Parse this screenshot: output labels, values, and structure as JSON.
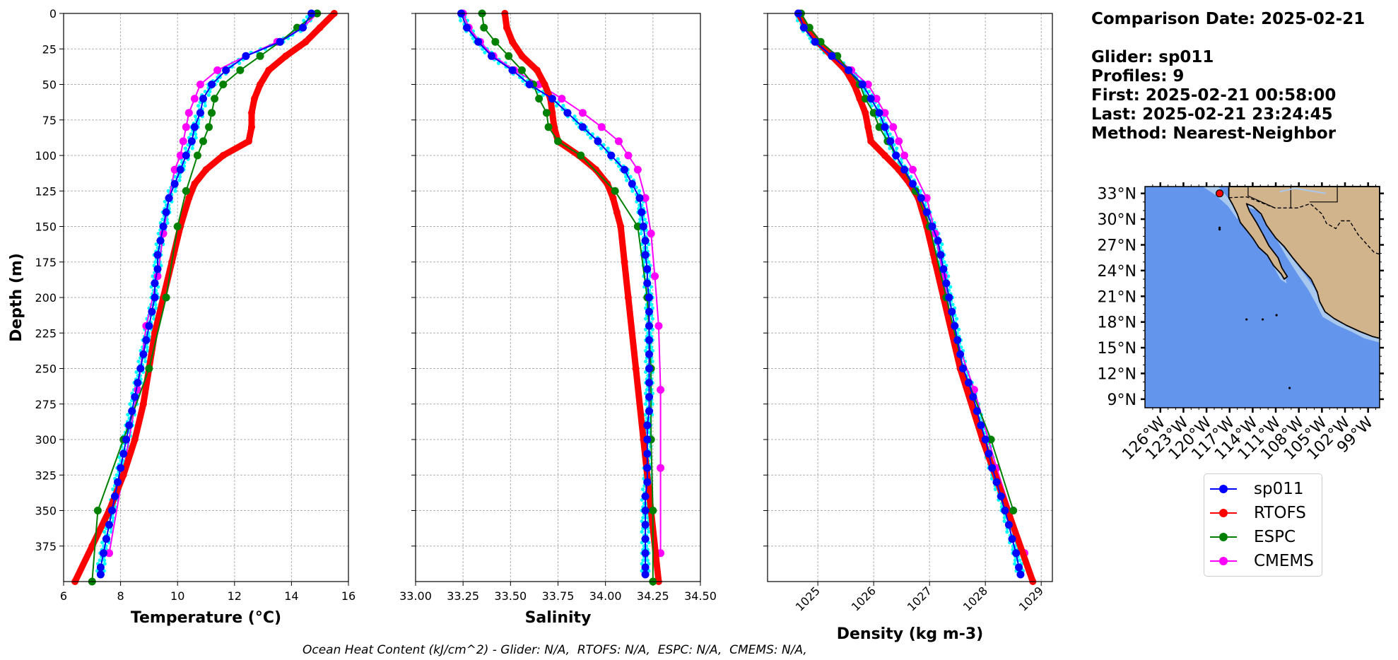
{
  "info": {
    "date": "Comparison Date: 2025-02-21",
    "glider": "Glider: sp011",
    "profiles": "Profiles: 9",
    "first": "First: 2025-02-21 00:58:00",
    "last": "Last: 2025-02-21 23:24:45",
    "method": "Method: Nearest-Neighbor"
  },
  "footer": "Ocean Heat Content (kJ/cm^2) - Glider: N/A,  RTOFS: N/A,  ESPC: N/A,  CMEMS: N/A,",
  "colors": {
    "glider": "#0000ff",
    "glider_raw": "#00ffff",
    "rtofs": "#ff0000",
    "espc": "#008000",
    "cmems": "#ff00ff",
    "ocean": "#6495ed",
    "land": "#d2b48c",
    "shelf": "#a9c8ee"
  },
  "legend": [
    {
      "label": "sp011",
      "color": "#0000ff"
    },
    {
      "label": "RTOFS",
      "color": "#ff0000"
    },
    {
      "label": "ESPC",
      "color": "#008000"
    },
    {
      "label": "CMEMS",
      "color": "#ff00ff"
    }
  ],
  "map": {
    "lat_ticks": [
      "33°N",
      "30°N",
      "27°N",
      "24°N",
      "21°N",
      "18°N",
      "15°N",
      "12°N",
      "9°N"
    ],
    "lon_ticks": [
      "126°W",
      "123°W",
      "120°W",
      "117°W",
      "114°W",
      "111°W",
      "108°W",
      "105°W",
      "102°W",
      "99°W"
    ],
    "glider_position": {
      "lon": -118.3,
      "lat": 33.0
    }
  },
  "chart_data": [
    {
      "type": "line",
      "xlabel": "Temperature (°C)",
      "ylabel": "Depth (m)",
      "xlim": [
        6,
        16
      ],
      "ylim": [
        400,
        0
      ],
      "xticks": [
        "6",
        "8",
        "10",
        "12",
        "14",
        "16"
      ],
      "yticks": [
        "0",
        "25",
        "50",
        "75",
        "100",
        "125",
        "150",
        "175",
        "200",
        "225",
        "250",
        "275",
        "300",
        "325",
        "350",
        "375"
      ],
      "grid": true,
      "series": [
        {
          "name": "sp011",
          "depth": [
            0,
            10,
            20,
            30,
            40,
            50,
            60,
            70,
            80,
            90,
            100,
            110,
            120,
            130,
            140,
            150,
            160,
            170,
            180,
            190,
            200,
            210,
            220,
            230,
            240,
            250,
            260,
            270,
            280,
            290,
            300,
            310,
            320,
            330,
            340,
            350,
            360,
            370,
            380,
            390,
            395
          ],
          "values": [
            14.7,
            14.4,
            13.6,
            12.4,
            11.7,
            11.2,
            10.9,
            10.8,
            10.6,
            10.5,
            10.3,
            10.1,
            9.9,
            9.7,
            9.6,
            9.5,
            9.4,
            9.3,
            9.3,
            9.2,
            9.2,
            9.1,
            9.0,
            8.9,
            8.8,
            8.7,
            8.6,
            8.5,
            8.4,
            8.3,
            8.2,
            8.1,
            8.0,
            7.9,
            7.8,
            7.7,
            7.6,
            7.5,
            7.4,
            7.3,
            7.3
          ]
        },
        {
          "name": "RTOFS",
          "depth": [
            0,
            10,
            20,
            30,
            40,
            50,
            60,
            70,
            80,
            90,
            100,
            110,
            120,
            130,
            150,
            175,
            200,
            225,
            250,
            275,
            300,
            325,
            350,
            375,
            400
          ],
          "values": [
            15.5,
            15.0,
            14.5,
            13.8,
            13.2,
            12.9,
            12.7,
            12.6,
            12.6,
            12.5,
            11.6,
            11.0,
            10.6,
            10.4,
            10.1,
            9.8,
            9.5,
            9.2,
            9.0,
            8.8,
            8.5,
            8.1,
            7.6,
            7.0,
            6.4
          ]
        },
        {
          "name": "ESPC",
          "depth": [
            0,
            10,
            20,
            30,
            40,
            50,
            60,
            70,
            80,
            90,
            100,
            125,
            150,
            200,
            250,
            300,
            350,
            400
          ],
          "values": [
            14.9,
            14.2,
            13.6,
            12.9,
            12.2,
            11.6,
            11.3,
            11.2,
            11.1,
            10.9,
            10.7,
            10.3,
            10.0,
            9.6,
            9.0,
            8.1,
            7.2,
            7.0
          ]
        },
        {
          "name": "CMEMS",
          "depth": [
            0,
            10,
            20,
            30,
            40,
            50,
            60,
            70,
            80,
            90,
            100,
            110,
            130,
            155,
            185,
            220,
            265,
            380
          ],
          "values": [
            14.9,
            14.4,
            13.5,
            12.4,
            11.4,
            10.8,
            10.6,
            10.4,
            10.3,
            10.2,
            10.1,
            9.9,
            9.7,
            9.5,
            9.3,
            8.9,
            8.6,
            7.6
          ]
        }
      ]
    },
    {
      "type": "line",
      "xlabel": "Salinity",
      "xlim": [
        33.0,
        34.5
      ],
      "ylim": [
        400,
        0
      ],
      "xticks": [
        "33.00",
        "33.25",
        "33.50",
        "33.75",
        "34.00",
        "34.25",
        "34.50"
      ],
      "grid": true,
      "series": [
        {
          "name": "sp011",
          "depth": [
            0,
            10,
            20,
            30,
            40,
            50,
            60,
            70,
            80,
            90,
            100,
            110,
            120,
            130,
            140,
            150,
            160,
            170,
            180,
            190,
            200,
            210,
            220,
            230,
            240,
            250,
            260,
            270,
            280,
            290,
            300,
            310,
            320,
            330,
            340,
            350,
            360,
            370,
            380,
            390,
            395
          ],
          "values": [
            33.24,
            33.27,
            33.33,
            33.4,
            33.51,
            33.6,
            33.72,
            33.8,
            33.88,
            33.96,
            34.03,
            34.1,
            34.14,
            34.18,
            34.19,
            34.2,
            34.21,
            34.21,
            34.22,
            34.22,
            34.23,
            34.23,
            34.23,
            34.23,
            34.23,
            34.23,
            34.23,
            34.23,
            34.23,
            34.22,
            34.22,
            34.22,
            34.22,
            34.22,
            34.21,
            34.21,
            34.21,
            34.21,
            34.21,
            34.21,
            34.21
          ]
        },
        {
          "name": "RTOFS",
          "depth": [
            0,
            10,
            20,
            30,
            40,
            50,
            60,
            70,
            80,
            90,
            100,
            110,
            120,
            130,
            140,
            150,
            175,
            200,
            250,
            300,
            350,
            400
          ],
          "values": [
            33.47,
            33.48,
            33.51,
            33.56,
            33.64,
            33.68,
            33.71,
            33.72,
            33.73,
            33.75,
            33.86,
            33.95,
            34.01,
            34.04,
            34.06,
            34.08,
            34.1,
            34.12,
            34.16,
            34.2,
            34.24,
            34.28
          ]
        },
        {
          "name": "ESPC",
          "depth": [
            0,
            10,
            20,
            30,
            40,
            50,
            60,
            70,
            80,
            90,
            100,
            125,
            150,
            200,
            250,
            300,
            350,
            400
          ],
          "values": [
            33.35,
            33.36,
            33.42,
            33.49,
            33.56,
            33.62,
            33.65,
            33.69,
            33.7,
            33.75,
            33.87,
            34.05,
            34.17,
            34.22,
            34.24,
            34.24,
            34.25,
            34.25
          ]
        },
        {
          "name": "CMEMS",
          "depth": [
            0,
            10,
            20,
            30,
            40,
            50,
            60,
            70,
            80,
            90,
            100,
            110,
            130,
            155,
            185,
            220,
            265,
            320,
            380
          ],
          "values": [
            33.25,
            33.28,
            33.34,
            33.41,
            33.52,
            33.65,
            33.77,
            33.88,
            33.98,
            34.07,
            34.12,
            34.17,
            34.21,
            34.24,
            34.26,
            34.28,
            34.29,
            34.29,
            34.29
          ]
        }
      ]
    },
    {
      "type": "line",
      "xlabel": "Density (kg m-3)",
      "xlim": [
        1024.1,
        1029.2
      ],
      "ylim": [
        400,
        0
      ],
      "xticks": [
        "1025",
        "1026",
        "1027",
        "1028",
        "1029"
      ],
      "grid": true,
      "series": [
        {
          "name": "sp011",
          "depth": [
            0,
            10,
            20,
            30,
            40,
            50,
            60,
            70,
            80,
            90,
            100,
            110,
            120,
            130,
            140,
            150,
            160,
            170,
            180,
            190,
            200,
            210,
            220,
            230,
            240,
            250,
            260,
            270,
            280,
            290,
            300,
            310,
            320,
            330,
            340,
            350,
            360,
            370,
            380,
            390,
            395
          ],
          "values": [
            1024.65,
            1024.75,
            1024.95,
            1025.25,
            1025.55,
            1025.8,
            1025.95,
            1026.1,
            1026.2,
            1026.3,
            1026.4,
            1026.55,
            1026.7,
            1026.85,
            1026.95,
            1027.05,
            1027.15,
            1027.2,
            1027.25,
            1027.3,
            1027.35,
            1027.4,
            1027.45,
            1027.5,
            1027.55,
            1027.6,
            1027.7,
            1027.78,
            1027.85,
            1027.92,
            1028.0,
            1028.06,
            1028.12,
            1028.2,
            1028.28,
            1028.35,
            1028.42,
            1028.48,
            1028.55,
            1028.6,
            1028.63
          ]
        },
        {
          "name": "RTOFS",
          "depth": [
            0,
            10,
            20,
            30,
            40,
            50,
            60,
            70,
            80,
            90,
            100,
            110,
            120,
            130,
            150,
            175,
            200,
            250,
            300,
            350,
            400
          ],
          "values": [
            1024.65,
            1024.8,
            1025.0,
            1025.25,
            1025.5,
            1025.65,
            1025.75,
            1025.85,
            1025.9,
            1025.95,
            1026.2,
            1026.45,
            1026.65,
            1026.8,
            1026.95,
            1027.1,
            1027.25,
            1027.55,
            1027.95,
            1028.4,
            1028.85
          ]
        },
        {
          "name": "ESPC",
          "depth": [
            0,
            10,
            20,
            30,
            40,
            50,
            60,
            70,
            80,
            90,
            100,
            125,
            150,
            200,
            250,
            300,
            350
          ],
          "values": [
            1024.7,
            1024.85,
            1025.05,
            1025.35,
            1025.55,
            1025.75,
            1025.85,
            1026.0,
            1026.1,
            1026.25,
            1026.4,
            1026.75,
            1027.0,
            1027.3,
            1027.6,
            1028.1,
            1028.5
          ]
        },
        {
          "name": "CMEMS",
          "depth": [
            0,
            10,
            20,
            30,
            40,
            50,
            60,
            70,
            80,
            90,
            100,
            110,
            130,
            155,
            185,
            220,
            265,
            320,
            380
          ],
          "values": [
            1024.65,
            1024.8,
            1025.0,
            1025.3,
            1025.6,
            1025.9,
            1026.05,
            1026.2,
            1026.35,
            1026.45,
            1026.55,
            1026.7,
            1026.95,
            1027.1,
            1027.25,
            1027.4,
            1027.8,
            1028.2,
            1028.7
          ]
        }
      ]
    }
  ]
}
